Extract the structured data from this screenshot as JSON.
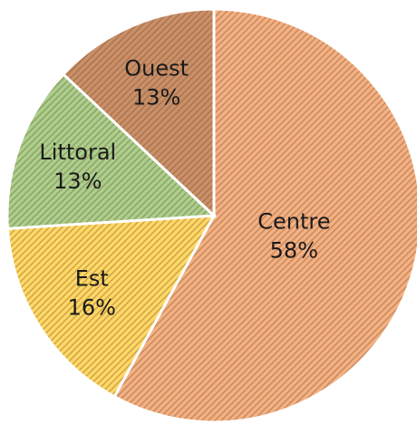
{
  "chart_data": {
    "type": "pie",
    "categories": [
      "Centre",
      "Est",
      "Littoral",
      "Ouest"
    ],
    "values": [
      58,
      16,
      13,
      13
    ],
    "value_labels": [
      "58%",
      "16%",
      "13%",
      "13%"
    ],
    "colors": [
      "#f4b183",
      "#ffd966",
      "#a9d18e",
      "#c9906a"
    ]
  }
}
